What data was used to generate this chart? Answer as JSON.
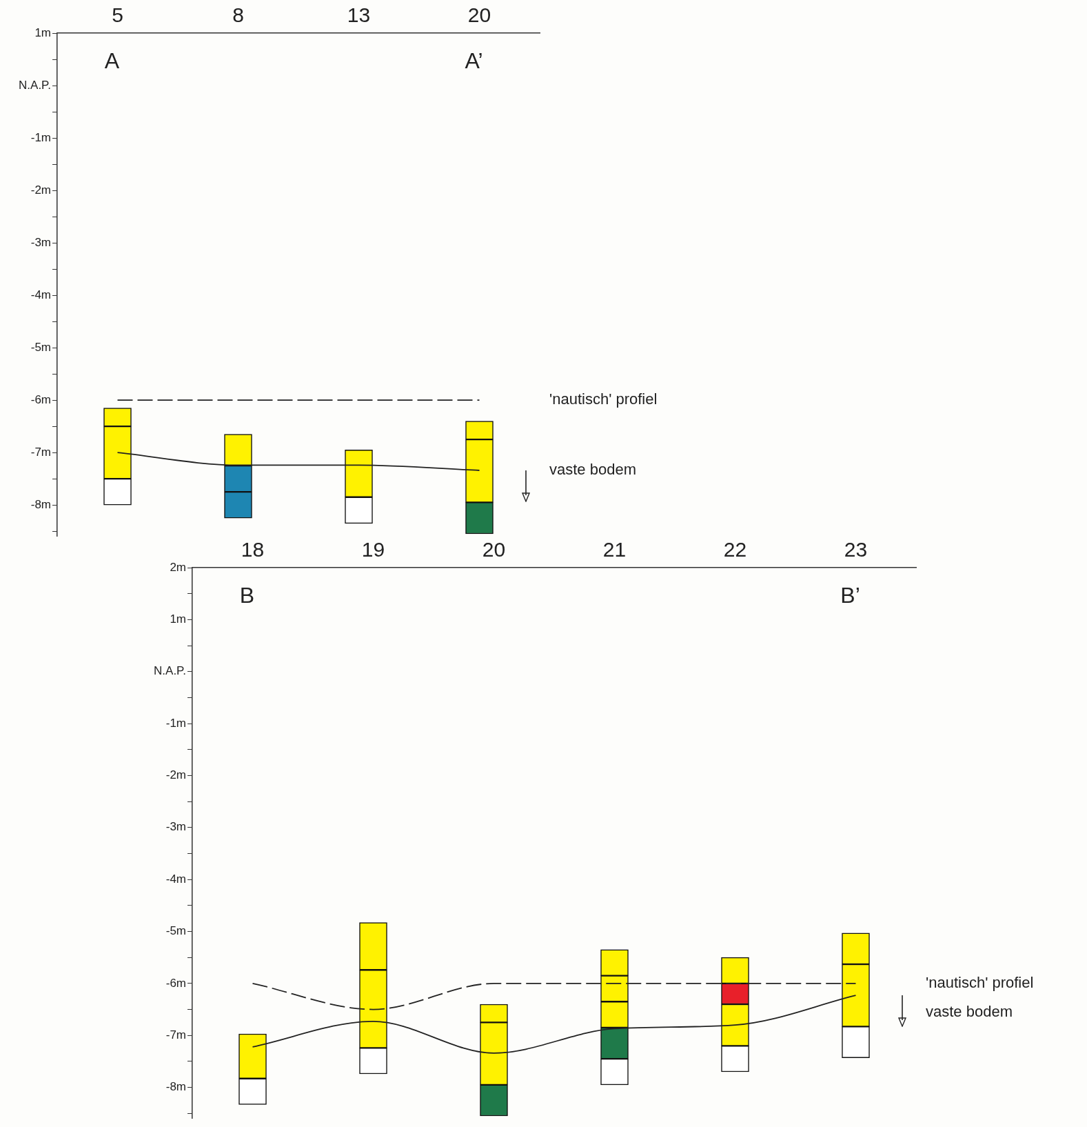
{
  "chart_data": [
    {
      "type": "bar",
      "categories": [
        "5",
        "8",
        "13",
        "20"
      ],
      "series": [
        {
          "colors": [
            "#fff200",
            "#fff200",
            "#fff200",
            "#fff200"
          ],
          "base": [
            -6.15,
            -6.65,
            -6.95,
            -6.4
          ],
          "values": [
            -0.35,
            -0.6,
            -0.9,
            -0.35
          ]
        },
        {
          "colors": [
            "#fff200",
            "#1e86b2",
            "#ffffff",
            "#fff200"
          ],
          "base": [
            -6.5,
            -7.25,
            -7.85,
            -6.75
          ],
          "values": [
            -1.0,
            -0.5,
            -0.5,
            -1.2
          ]
        },
        {
          "colors": [
            "#ffffff",
            "#1e86b2",
            null,
            "#1f7a4a"
          ],
          "base": [
            -7.5,
            -7.75,
            null,
            -7.95
          ],
          "values": [
            -0.5,
            -0.5,
            null,
            -0.6
          ]
        },
        {
          "type": "line",
          "name": "'nautisch' profiel",
          "color": "#222222",
          "line_style": "dashed",
          "values": [
            -6,
            -6,
            -6,
            -6
          ]
        },
        {
          "type": "line",
          "name": "vaste bodem",
          "color": "#222222",
          "line_style": "solid",
          "values": [
            -7.0,
            -7.24,
            -7.24,
            -7.34
          ]
        }
      ],
      "ylim": [
        -8.6,
        1
      ],
      "yticks": [
        {
          "value": 1,
          "label": "1m"
        },
        {
          "value": 0.5,
          "label": null
        },
        {
          "value": 0,
          "label": "N.A.P."
        },
        {
          "value": -0.5,
          "label": null
        },
        {
          "value": -1,
          "label": "-1m"
        },
        {
          "value": -1.5,
          "label": null
        },
        {
          "value": -2,
          "label": "-2m"
        },
        {
          "value": -2.5,
          "label": null
        },
        {
          "value": -3,
          "label": "-3m"
        },
        {
          "value": -3.5,
          "label": null
        },
        {
          "value": -4,
          "label": "-4m"
        },
        {
          "value": -4.5,
          "label": null
        },
        {
          "value": -5,
          "label": "-5m"
        },
        {
          "value": -5.5,
          "label": null
        },
        {
          "value": -6,
          "label": "-6m"
        },
        {
          "value": -6.5,
          "label": null
        },
        {
          "value": -7,
          "label": "-7m"
        },
        {
          "value": -7.5,
          "label": null
        },
        {
          "value": -8,
          "label": "-8m"
        },
        {
          "value": -8.5,
          "label": null
        }
      ],
      "annotations": [
        "A",
        "A’"
      ]
    },
    {
      "type": "bar",
      "categories": [
        "18",
        "19",
        "20",
        "21",
        "22",
        "23"
      ],
      "series": [
        {
          "colors": [
            "#fff200",
            "#fff200",
            "#fff200",
            "#fff200",
            "#fff200",
            "#fff200"
          ],
          "base": [
            -6.97,
            -4.83,
            -6.4,
            -5.35,
            -5.5,
            -5.03
          ],
          "values": [
            -0.86,
            -0.91,
            -0.35,
            -0.5,
            -0.5,
            -0.6
          ]
        },
        {
          "colors": [
            "#ffffff",
            "#fff200",
            "#fff200",
            "#fff200",
            "#e8202a",
            "#fff200"
          ],
          "base": [
            -7.83,
            -5.74,
            -6.75,
            -5.85,
            -6.0,
            -5.63
          ],
          "values": [
            -0.5,
            -1.5,
            -1.2,
            -0.5,
            -0.4,
            -1.2
          ]
        },
        {
          "colors": [
            null,
            "#ffffff",
            "#1f7a4a",
            "#fff200",
            "#fff200",
            "#ffffff"
          ],
          "base": [
            null,
            -7.24,
            -7.95,
            -6.35,
            -6.4,
            -6.83
          ],
          "values": [
            null,
            -0.5,
            -0.6,
            -0.5,
            -0.8,
            -0.6
          ]
        },
        {
          "colors": [
            null,
            null,
            null,
            "#1f7a4a",
            "#ffffff",
            null
          ],
          "base": [
            null,
            null,
            null,
            -6.85,
            -7.2,
            null
          ],
          "values": [
            null,
            null,
            null,
            -0.6,
            -0.5,
            null
          ]
        },
        {
          "colors": [
            null,
            null,
            null,
            "#ffffff",
            null,
            null
          ],
          "base": [
            null,
            null,
            null,
            -7.45,
            null,
            null
          ],
          "values": [
            null,
            null,
            null,
            -0.5,
            null,
            null
          ]
        },
        {
          "type": "line",
          "name": "'nautisch' profiel",
          "color": "#222222",
          "line_style": "dashed",
          "values": [
            -6,
            -6.5,
            -6,
            -6,
            -6,
            -6
          ]
        },
        {
          "type": "line",
          "name": "vaste bodem",
          "color": "#222222",
          "line_style": "solid",
          "values": [
            -7.22,
            -6.73,
            -7.34,
            -6.87,
            -6.8,
            -6.23
          ]
        }
      ],
      "ylim": [
        -8.6,
        2
      ],
      "yticks": [
        {
          "value": 2,
          "label": "2m"
        },
        {
          "value": 1.5,
          "label": null
        },
        {
          "value": 1,
          "label": "1m"
        },
        {
          "value": 0.5,
          "label": null
        },
        {
          "value": 0,
          "label": "N.A.P."
        },
        {
          "value": -0.5,
          "label": null
        },
        {
          "value": -1,
          "label": "-1m"
        },
        {
          "value": -1.5,
          "label": null
        },
        {
          "value": -2,
          "label": "-2m"
        },
        {
          "value": -2.5,
          "label": null
        },
        {
          "value": -3,
          "label": "-3m"
        },
        {
          "value": -3.5,
          "label": null
        },
        {
          "value": -4,
          "label": "-4m"
        },
        {
          "value": -4.5,
          "label": null
        },
        {
          "value": -5,
          "label": "-5m"
        },
        {
          "value": -5.5,
          "label": null
        },
        {
          "value": -6,
          "label": "-6m"
        },
        {
          "value": -6.5,
          "label": null
        },
        {
          "value": -7,
          "label": "-7m"
        },
        {
          "value": -7.5,
          "label": null
        },
        {
          "value": -8,
          "label": "-8m"
        },
        {
          "value": -8.5,
          "label": null
        }
      ],
      "annotations": [
        "B",
        "B’"
      ]
    }
  ]
}
